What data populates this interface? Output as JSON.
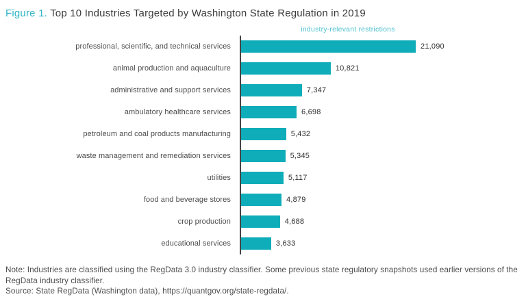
{
  "title": {
    "figure_label": "Figure 1.",
    "text": " Top 10 Industries Targeted by Washington State Regulation in 2019"
  },
  "chart_data": {
    "type": "bar",
    "orientation": "horizontal",
    "title": "Top 10 Industries Targeted by Washington State Regulation in 2019",
    "series_label": "industry-relevant restrictions",
    "categories": [
      "professional, scientific, and technical services",
      "animal production and aquaculture",
      "administrative and support services",
      "ambulatory healthcare services",
      "petroleum and coal products manufacturing",
      "waste management and remediation services",
      "utilities",
      "food and beverage stores",
      "crop production",
      "educational services"
    ],
    "values": [
      21090,
      10821,
      7347,
      6698,
      5432,
      5345,
      5117,
      4879,
      4688,
      3633
    ],
    "value_labels": [
      "21,090",
      "10,821",
      "7,347",
      "6,698",
      "5,432",
      "5,345",
      "5,117",
      "4,879",
      "4,688",
      "3,633"
    ],
    "xlim": [
      0,
      21090
    ],
    "grid": false,
    "legend_position": "top-center",
    "bar_color": "#0fadb9"
  },
  "notes": {
    "note": "Note: Industries are classified using the RegData 3.0 industry classifier. Some previous state regulatory snapshots used earlier versions of the RegData industry classifier.",
    "source": "Source: State RegData (Washington data), https://quantgov.org/state-regdata/."
  },
  "colors": {
    "bar_teal": "#0fadb9",
    "figure_label_teal": "#2fb4c4",
    "series_label_teal": "#4fc1cf",
    "title_dark": "#3a3a3c",
    "axis_dark": "#454547"
  }
}
